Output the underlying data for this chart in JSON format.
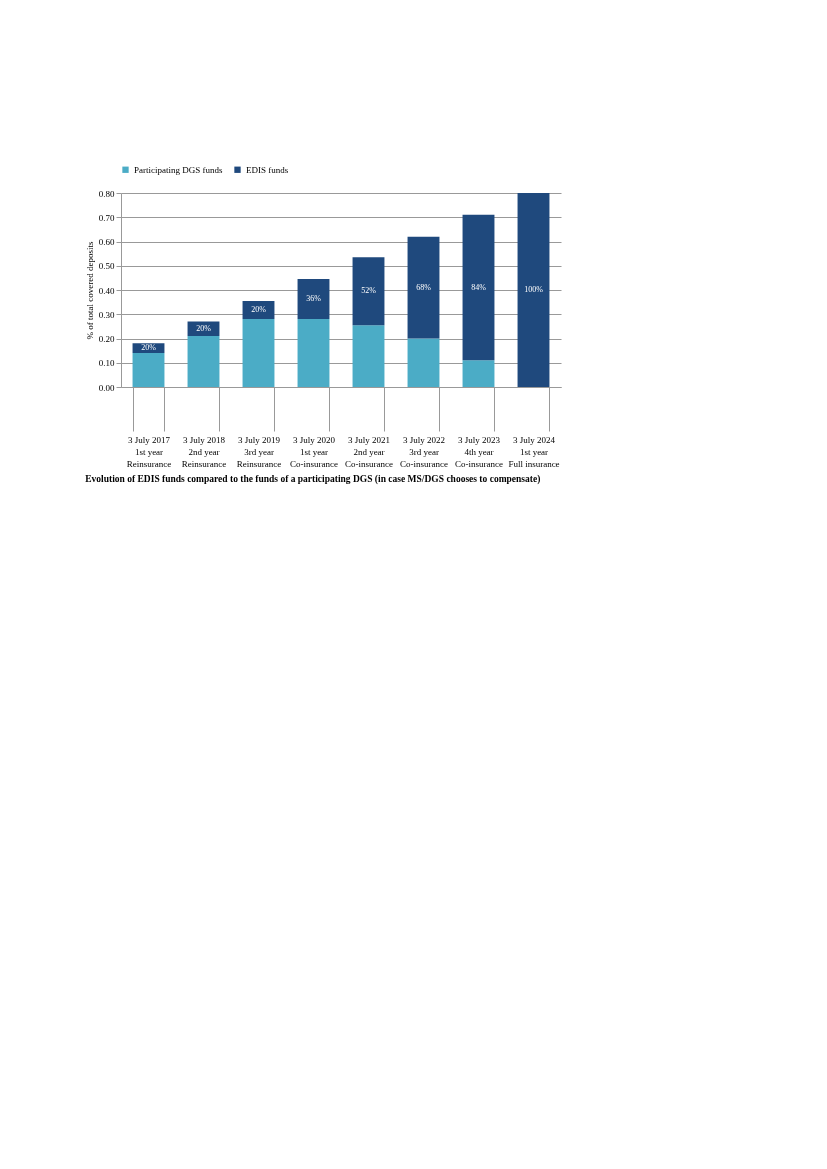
{
  "chart_data": {
    "type": "bar",
    "title": "Evolution of EDIS funds compared to the funds of a participating DGS (in case MS/DGS chooses to compensate)",
    "ylabel": "% of total covered deposits",
    "categories": [
      "3 July 2017\n1st year\nReinsurance",
      "3 July 2018\n2nd year\nReinsurance",
      "3 July 2019\n3rd year\nReinsurance",
      "3 July 2020\n1st year\nCo-insurance",
      "3 July 2021\n2nd year\nCo-insurance",
      "3 July 2022\n3rd year\nCo-insurance",
      "3 July 2023\n4th year\nCo-insurance",
      "3 July 2024\n1st year\nFull insurance"
    ],
    "stacked": true,
    "series": [
      {
        "name": "Participating DGS funds",
        "color": "#4bacc6",
        "values": [
          0.14,
          0.21,
          0.28,
          0.28,
          0.255,
          0.2,
          0.11,
          0
        ]
      },
      {
        "name": "EDIS funds",
        "color": "#1f497d",
        "values": [
          0.04,
          0.06,
          0.075,
          0.165,
          0.28,
          0.42,
          0.6,
          0.8
        ]
      }
    ],
    "annotations": [
      "20%",
      "20%",
      "20%",
      "36%",
      "52%",
      "68%",
      "84%",
      "100%"
    ],
    "ylim": [
      0,
      0.8
    ],
    "yticks": [
      {
        "value": 0,
        "label": "0.00"
      },
      {
        "value": 0.1,
        "label": "0.10"
      },
      {
        "value": 0.2,
        "label": "0.20"
      },
      {
        "value": 0.3,
        "label": "0.30"
      },
      {
        "value": 0.4,
        "label": "0.40"
      },
      {
        "value": 0.5,
        "label": "0.50"
      },
      {
        "value": 0.6,
        "label": "0.60"
      },
      {
        "value": 0.7,
        "label": "0.70"
      },
      {
        "value": 0.8,
        "label": "0.80"
      }
    ],
    "grid": "y",
    "legend": "top"
  }
}
